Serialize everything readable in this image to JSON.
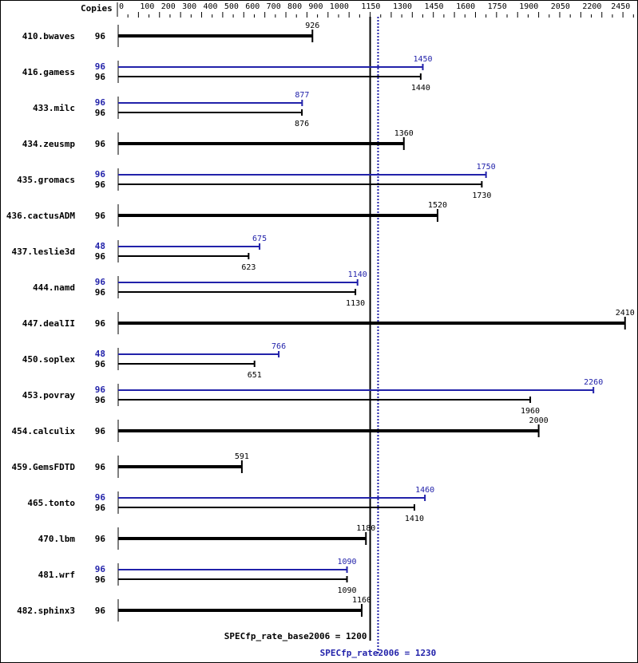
{
  "chart_data": {
    "type": "bar",
    "orientation": "horizontal",
    "copies_header": "Copies",
    "xlim": [
      0,
      2450
    ],
    "tick_labels": [
      0,
      100,
      200,
      300,
      400,
      500,
      600,
      700,
      800,
      900,
      1000,
      1150,
      1300,
      1450,
      1600,
      1750,
      1900,
      2050,
      2200,
      2450
    ],
    "colors": {
      "base": "#000000",
      "peak": "#2222aa"
    },
    "benchmarks": [
      {
        "name": "410.bwaves",
        "base_copies": "96",
        "base": 926
      },
      {
        "name": "416.gamess",
        "peak_copies": "96",
        "peak": 1450,
        "base_copies": "96",
        "base": 1440
      },
      {
        "name": "433.milc",
        "peak_copies": "96",
        "peak": 877,
        "base_copies": "96",
        "base": 876
      },
      {
        "name": "434.zeusmp",
        "base_copies": "96",
        "base": 1360
      },
      {
        "name": "435.gromacs",
        "peak_copies": "96",
        "peak": 1750,
        "base_copies": "96",
        "base": 1730
      },
      {
        "name": "436.cactusADM",
        "base_copies": "96",
        "base": 1520
      },
      {
        "name": "437.leslie3d",
        "peak_copies": "48",
        "peak": 675,
        "base_copies": "96",
        "base": 623
      },
      {
        "name": "444.namd",
        "peak_copies": "96",
        "peak": 1140,
        "base_copies": "96",
        "base": 1130
      },
      {
        "name": "447.dealII",
        "base_copies": "96",
        "base": 2410
      },
      {
        "name": "450.soplex",
        "peak_copies": "48",
        "peak": 766,
        "base_copies": "96",
        "base": 651
      },
      {
        "name": "453.povray",
        "peak_copies": "96",
        "peak": 2260,
        "base_copies": "96",
        "base": 1960
      },
      {
        "name": "454.calculix",
        "base_copies": "96",
        "base": 2000
      },
      {
        "name": "459.GemsFDTD",
        "base_copies": "96",
        "base": 591
      },
      {
        "name": "465.tonto",
        "peak_copies": "96",
        "peak": 1460,
        "base_copies": "96",
        "base": 1410
      },
      {
        "name": "470.lbm",
        "base_copies": "96",
        "base": 1180
      },
      {
        "name": "481.wrf",
        "peak_copies": "96",
        "peak": 1090,
        "base_copies": "96",
        "base": 1090
      },
      {
        "name": "482.sphinx3",
        "base_copies": "96",
        "base": 1160
      }
    ],
    "base_summary": {
      "label": "SPECfp_rate_base2006 = 1200",
      "value": 1200
    },
    "peak_summary": {
      "label": "SPECfp_rate2006 = 1230",
      "value": 1230
    }
  }
}
